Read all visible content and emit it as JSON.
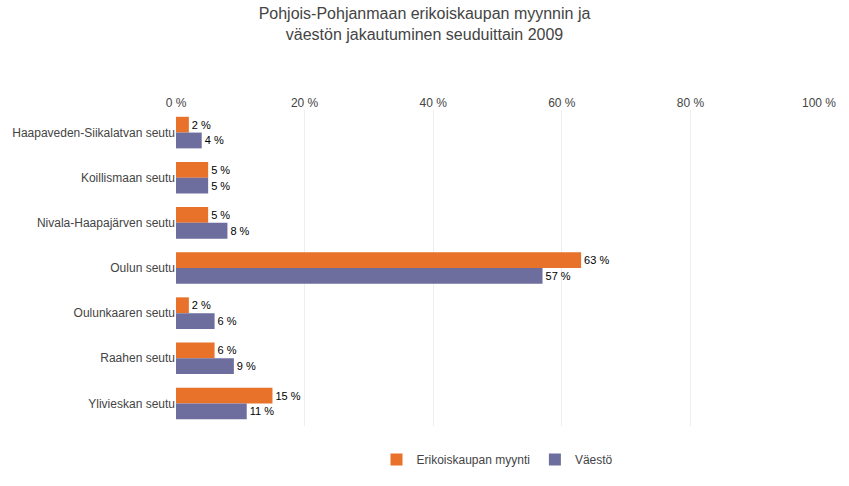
{
  "chart_data": {
    "type": "bar",
    "orientation": "horizontal",
    "title": "Pohjois-Pohjanmaan erikoiskaupan myynnin ja\nväestön jakautuminen seuduittain 2009",
    "categories": [
      "Haapaveden-Siikalatvan seutu",
      "Koillismaan seutu",
      "Nivala-Haapajärven seutu",
      "Oulun seutu",
      "Oulunkaaren seutu",
      "Raahen seutu",
      "Ylivieskan seutu"
    ],
    "series": [
      {
        "name": "Erikoiskaupan myynti",
        "color": "#E8722A",
        "values": [
          2,
          5,
          5,
          63,
          2,
          6,
          15
        ],
        "value_labels": [
          "2 %",
          "5 %",
          "5 %",
          "63 %",
          "2 %",
          "6 %",
          "15 %"
        ]
      },
      {
        "name": "Väestö",
        "color": "#6E6E9E",
        "values": [
          4,
          5,
          8,
          57,
          6,
          9,
          11
        ],
        "value_labels": [
          "4 %",
          "5 %",
          "8 %",
          "57 %",
          "6 %",
          "9 %",
          "11 %"
        ]
      }
    ],
    "xlim": [
      0,
      100
    ],
    "xticks": [
      {
        "value": 0,
        "label": "0 %"
      },
      {
        "value": 20,
        "label": "20 %"
      },
      {
        "value": 40,
        "label": "40 %"
      },
      {
        "value": 60,
        "label": "60 %"
      },
      {
        "value": 80,
        "label": "80 %"
      },
      {
        "value": 100,
        "label": "100 %"
      }
    ],
    "grid": true,
    "data_labels": true,
    "legend": "bottom"
  }
}
